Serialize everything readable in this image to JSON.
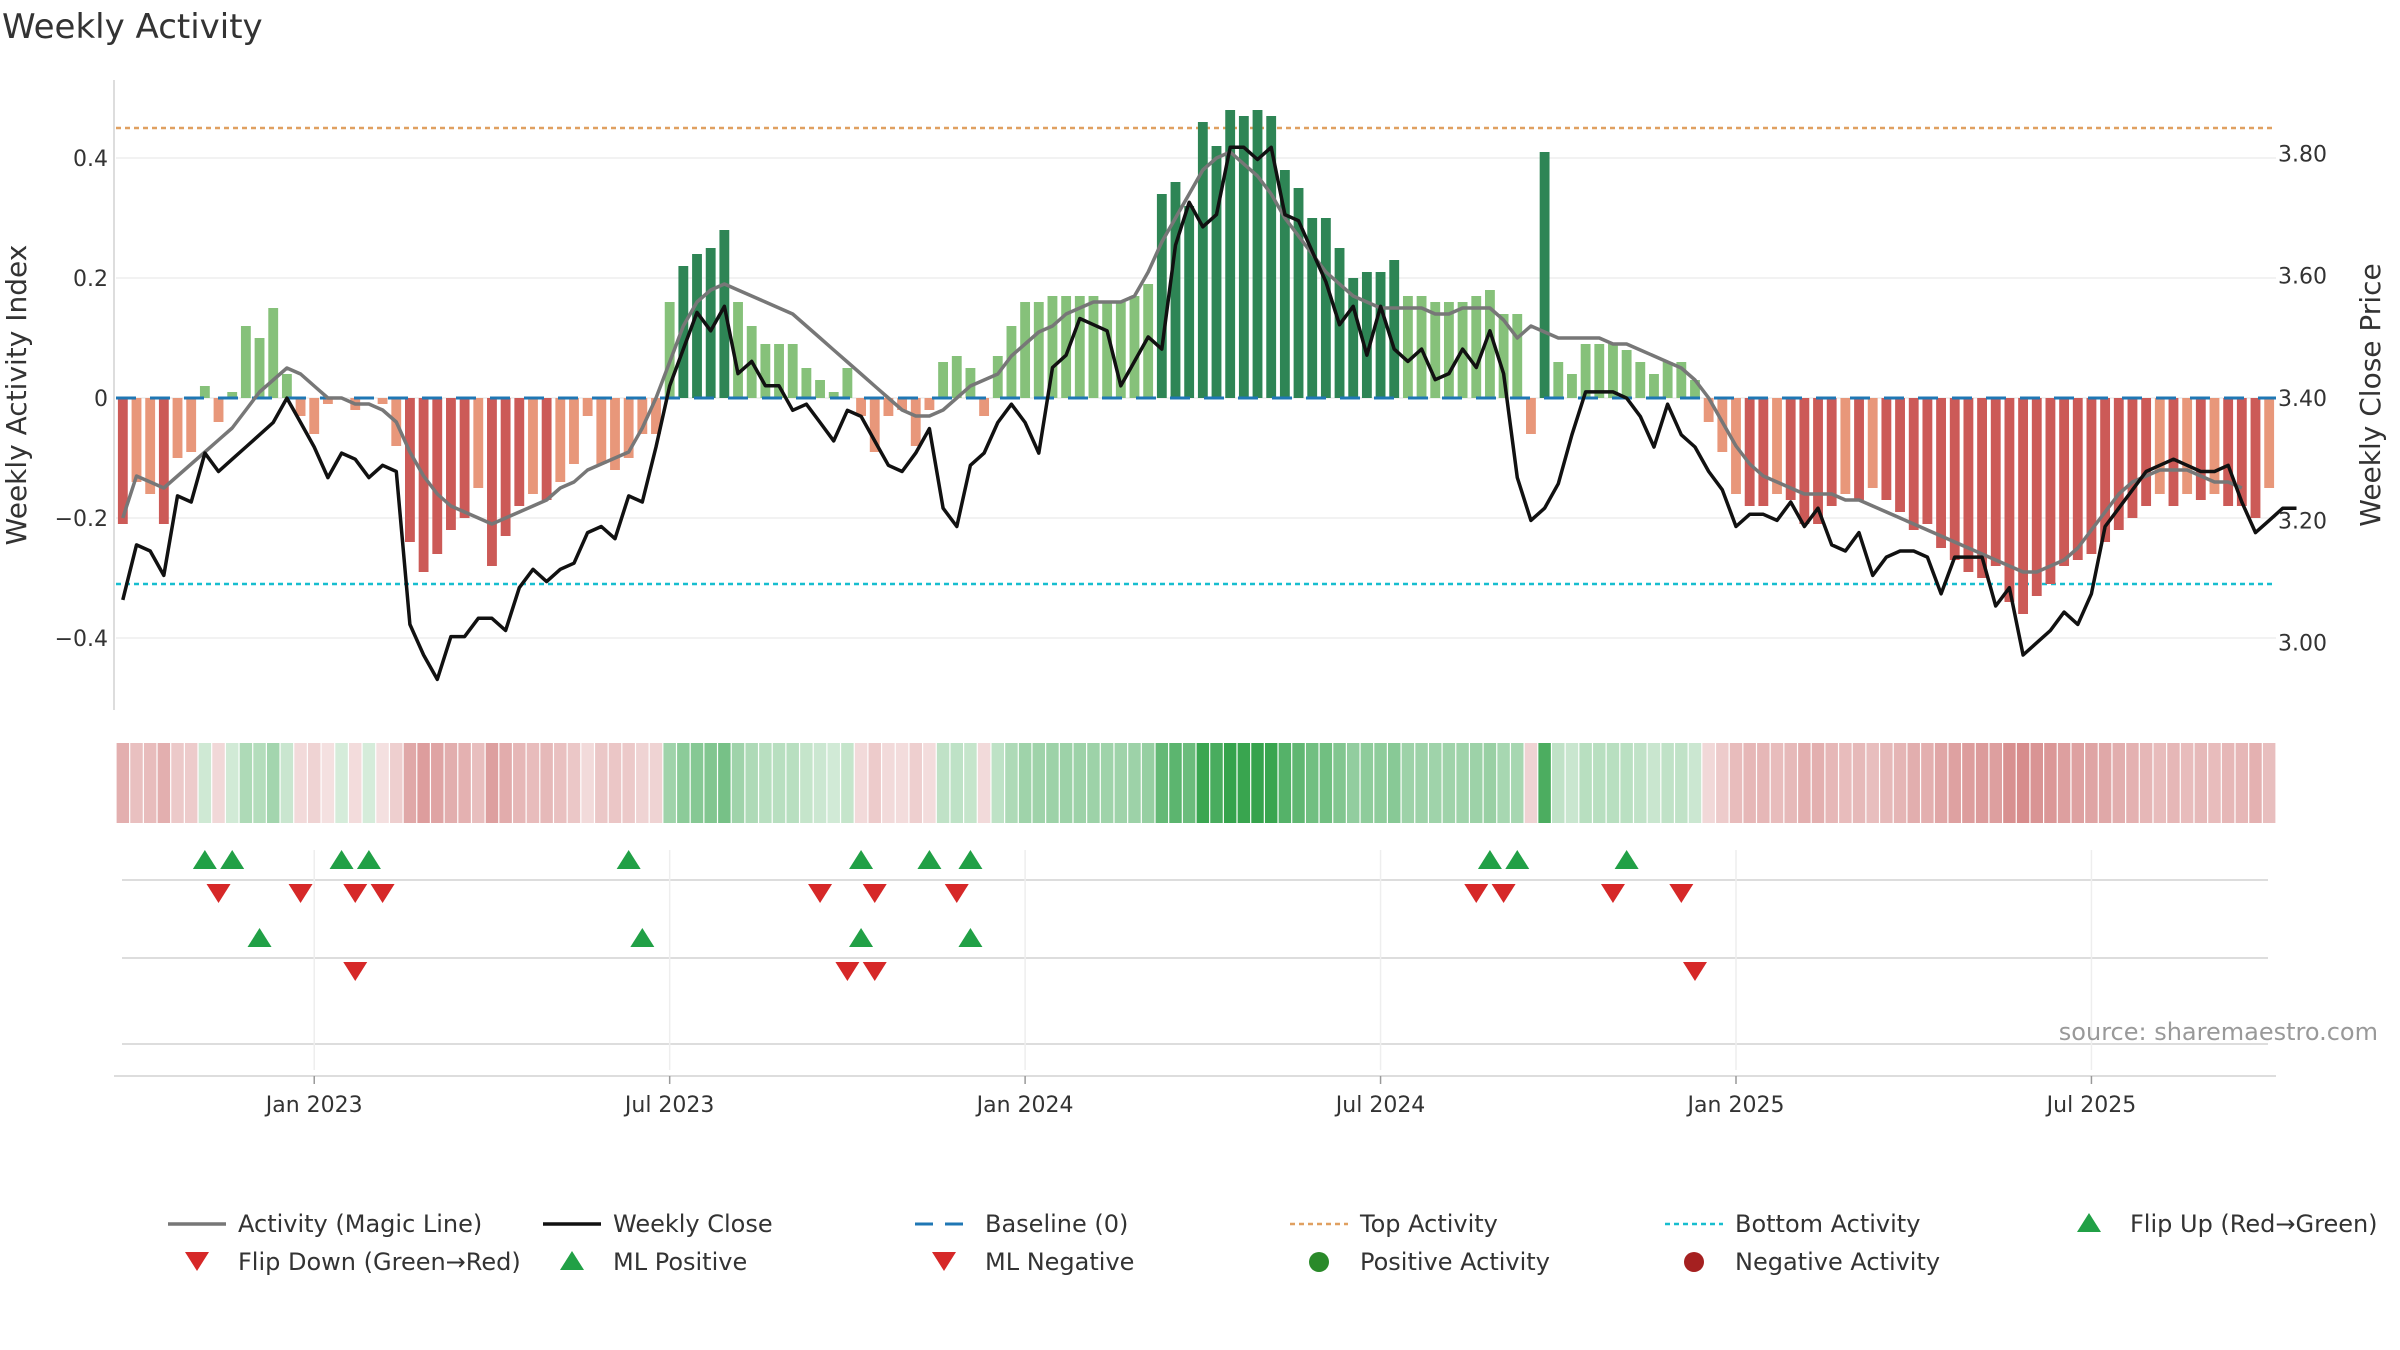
{
  "chart_data": {
    "type": "bar+line",
    "title": "Weekly Activity",
    "ylabel_left": "Weekly Activity Index",
    "ylabel_right": "Weekly Close Price",
    "left_ticks": [
      0.4,
      0.2,
      0,
      -0.2,
      -0.4
    ],
    "left_tick_labels": [
      "0.4",
      "0.2",
      "0",
      "−0.2",
      "−0.4"
    ],
    "right_ticks": [
      3.8,
      3.6,
      3.4,
      3.2,
      3.0
    ],
    "right_tick_labels": [
      "3.80",
      "3.60",
      "3.40",
      "3.20",
      "3.00"
    ],
    "ylim_left": [
      -0.52,
      0.53
    ],
    "ylim_right": [
      2.89,
      3.92
    ],
    "x_tick_labels": [
      "Jan 2023",
      "Jul 2023",
      "Jan 2024",
      "Jul 2024",
      "Jan 2025",
      "Jul 2025"
    ],
    "x_tick_weeks": [
      14,
      40,
      66,
      92,
      118,
      144
    ],
    "n_weeks": 158,
    "top_activity": 0.45,
    "bottom_activity": -0.31,
    "weekly_activity": [
      -0.21,
      -0.14,
      -0.16,
      -0.21,
      -0.1,
      -0.09,
      0.02,
      -0.04,
      0.01,
      0.12,
      0.1,
      0.15,
      0.04,
      -0.03,
      -0.06,
      -0.01,
      0.0,
      -0.02,
      0.0,
      -0.01,
      -0.08,
      -0.24,
      -0.29,
      -0.26,
      -0.22,
      -0.2,
      -0.15,
      -0.28,
      -0.23,
      -0.18,
      -0.16,
      -0.17,
      -0.14,
      -0.11,
      -0.03,
      -0.11,
      -0.12,
      -0.1,
      -0.06,
      -0.06,
      0.16,
      0.22,
      0.24,
      0.25,
      0.28,
      0.16,
      0.12,
      0.09,
      0.09,
      0.09,
      0.05,
      0.03,
      0.01,
      0.05,
      -0.03,
      -0.09,
      -0.03,
      -0.02,
      -0.08,
      -0.02,
      0.06,
      0.07,
      0.05,
      -0.03,
      0.07,
      0.12,
      0.16,
      0.16,
      0.17,
      0.17,
      0.17,
      0.17,
      0.16,
      0.16,
      0.17,
      0.19,
      0.34,
      0.36,
      0.32,
      0.46,
      0.42,
      0.48,
      0.47,
      0.48,
      0.47,
      0.38,
      0.35,
      0.3,
      0.3,
      0.25,
      0.2,
      0.21,
      0.21,
      0.23,
      0.17,
      0.17,
      0.16,
      0.16,
      0.16,
      0.17,
      0.18,
      0.14,
      0.14,
      -0.06,
      0.41,
      0.06,
      0.04,
      0.09,
      0.09,
      0.09,
      0.08,
      0.06,
      0.04,
      0.06,
      0.06,
      0.03,
      -0.04,
      -0.09,
      -0.16,
      -0.18,
      -0.18,
      -0.16,
      -0.17,
      -0.21,
      -0.21,
      -0.18,
      -0.16,
      -0.17,
      -0.15,
      -0.17,
      -0.19,
      -0.22,
      -0.21,
      -0.25,
      -0.27,
      -0.29,
      -0.3,
      -0.28,
      -0.34,
      -0.36,
      -0.33,
      -0.31,
      -0.28,
      -0.27,
      -0.26,
      -0.24,
      -0.22,
      -0.2,
      -0.18,
      -0.16,
      -0.18,
      -0.16,
      -0.17,
      -0.16,
      -0.18,
      -0.18,
      -0.2,
      -0.15
    ],
    "magic_line": [
      -0.2,
      -0.13,
      -0.14,
      -0.15,
      -0.13,
      -0.11,
      -0.09,
      -0.07,
      -0.05,
      -0.02,
      0.01,
      0.03,
      0.05,
      0.04,
      0.02,
      0.0,
      0.0,
      -0.01,
      -0.01,
      -0.02,
      -0.04,
      -0.09,
      -0.13,
      -0.16,
      -0.18,
      -0.19,
      -0.2,
      -0.21,
      -0.2,
      -0.19,
      -0.18,
      -0.17,
      -0.15,
      -0.14,
      -0.12,
      -0.11,
      -0.1,
      -0.09,
      -0.05,
      0.0,
      0.06,
      0.12,
      0.16,
      0.18,
      0.19,
      0.18,
      0.17,
      0.16,
      0.15,
      0.14,
      0.12,
      0.1,
      0.08,
      0.06,
      0.04,
      0.02,
      0.0,
      -0.02,
      -0.03,
      -0.03,
      -0.02,
      0.0,
      0.02,
      0.03,
      0.04,
      0.07,
      0.09,
      0.11,
      0.12,
      0.14,
      0.15,
      0.16,
      0.16,
      0.16,
      0.17,
      0.21,
      0.26,
      0.3,
      0.34,
      0.38,
      0.4,
      0.41,
      0.39,
      0.37,
      0.34,
      0.3,
      0.27,
      0.24,
      0.21,
      0.19,
      0.17,
      0.16,
      0.15,
      0.15,
      0.15,
      0.15,
      0.14,
      0.14,
      0.15,
      0.15,
      0.15,
      0.13,
      0.1,
      0.12,
      0.11,
      0.1,
      0.1,
      0.1,
      0.1,
      0.09,
      0.09,
      0.08,
      0.07,
      0.06,
      0.05,
      0.03,
      0.0,
      -0.04,
      -0.08,
      -0.11,
      -0.13,
      -0.14,
      -0.15,
      -0.16,
      -0.16,
      -0.16,
      -0.17,
      -0.17,
      -0.18,
      -0.19,
      -0.2,
      -0.21,
      -0.22,
      -0.23,
      -0.24,
      -0.25,
      -0.26,
      -0.27,
      -0.28,
      -0.29,
      -0.29,
      -0.28,
      -0.27,
      -0.25,
      -0.22,
      -0.19,
      -0.16,
      -0.14,
      -0.13,
      -0.12,
      -0.12,
      -0.12,
      -0.13,
      -0.14,
      -0.14,
      -0.15
    ],
    "weekly_close": [
      3.07,
      3.16,
      3.15,
      3.11,
      3.24,
      3.23,
      3.31,
      3.28,
      3.3,
      3.32,
      3.34,
      3.36,
      3.4,
      3.36,
      3.32,
      3.27,
      3.31,
      3.3,
      3.27,
      3.29,
      3.28,
      3.03,
      2.98,
      2.94,
      3.01,
      3.01,
      3.04,
      3.04,
      3.02,
      3.09,
      3.12,
      3.1,
      3.12,
      3.13,
      3.18,
      3.19,
      3.17,
      3.24,
      3.23,
      3.32,
      3.42,
      3.48,
      3.54,
      3.51,
      3.55,
      3.44,
      3.46,
      3.42,
      3.42,
      3.38,
      3.39,
      3.36,
      3.33,
      3.38,
      3.37,
      3.33,
      3.29,
      3.28,
      3.31,
      3.35,
      3.22,
      3.19,
      3.29,
      3.31,
      3.36,
      3.39,
      3.36,
      3.31,
      3.45,
      3.47,
      3.53,
      3.52,
      3.51,
      3.42,
      3.46,
      3.5,
      3.48,
      3.65,
      3.72,
      3.68,
      3.7,
      3.81,
      3.81,
      3.79,
      3.81,
      3.7,
      3.69,
      3.64,
      3.59,
      3.52,
      3.55,
      3.47,
      3.55,
      3.48,
      3.46,
      3.48,
      3.43,
      3.44,
      3.48,
      3.45,
      3.51,
      3.44,
      3.27,
      3.2,
      3.22,
      3.26,
      3.34,
      3.41,
      3.41,
      3.41,
      3.4,
      3.37,
      3.32,
      3.39,
      3.34,
      3.32,
      3.28,
      3.25,
      3.19,
      3.21,
      3.21,
      3.2,
      3.23,
      3.19,
      3.22,
      3.16,
      3.15,
      3.18,
      3.11,
      3.14,
      3.15,
      3.15,
      3.14,
      3.08,
      3.14,
      3.14,
      3.14,
      3.06,
      3.09,
      2.98,
      3.0,
      3.02,
      3.05,
      3.03,
      3.08,
      3.19,
      3.22,
      3.25,
      3.28,
      3.29,
      3.3,
      3.29,
      3.28,
      3.28,
      3.29,
      3.23,
      3.18,
      3.2,
      3.22,
      3.22
    ],
    "markers": {
      "flip_up_weeks": [
        6,
        8,
        16,
        18,
        37,
        54,
        59,
        62,
        100,
        102,
        110
      ],
      "flip_down_weeks": [
        7,
        13,
        17,
        19,
        51,
        55,
        61,
        99,
        101,
        109,
        114
      ],
      "ml_positive_weeks": [
        10,
        38,
        54,
        62
      ],
      "ml_negative_weeks": [
        17,
        53,
        55,
        115
      ]
    }
  },
  "source": "source: sharemaestro.com",
  "legend": [
    {
      "name": "magic-line",
      "label": "Activity (Magic Line)"
    },
    {
      "name": "weekly-close",
      "label": "Weekly Close"
    },
    {
      "name": "baseline",
      "label": "Baseline (0)"
    },
    {
      "name": "top-activity",
      "label": "Top Activity"
    },
    {
      "name": "bottom-activity",
      "label": "Bottom Activity"
    },
    {
      "name": "flip-up",
      "label": "Flip Up (Red→Green)"
    },
    {
      "name": "flip-down",
      "label": "Flip Down (Green→Red)"
    },
    {
      "name": "ml-positive",
      "label": "ML Positive"
    },
    {
      "name": "ml-negative",
      "label": "ML Negative"
    },
    {
      "name": "positive-activity",
      "label": "Positive Activity"
    },
    {
      "name": "negative-activity",
      "label": "Negative Activity"
    }
  ],
  "colors": {
    "pos_dark": "#2e8555",
    "pos_light": "#86c17a",
    "neg_dark": "#cc5a57",
    "neg_light": "#e8977a",
    "magic": "#777777",
    "close": "#111111",
    "baseline": "#1f77b4",
    "top": "#e0a060",
    "bottom": "#17becf",
    "tri_up": "#21a046",
    "tri_down": "#d62828",
    "dot_pos": "#2a8a2a",
    "dot_neg": "#a52020"
  }
}
